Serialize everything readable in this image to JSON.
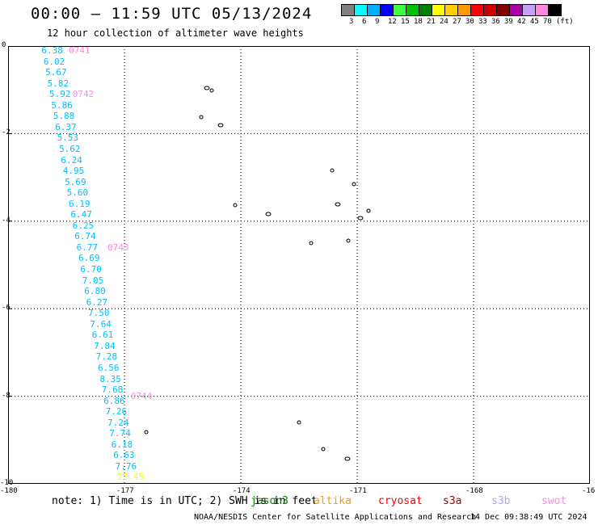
{
  "header": {
    "title": "00:00 – 11:59 UTC 05/13/2024",
    "subtitle": "12 hour collection of altimeter wave heights"
  },
  "legend": {
    "colors": [
      "#808080",
      "#00ffff",
      "#00b0ff",
      "#0000ff",
      "#40ff40",
      "#00c000",
      "#008000",
      "#ffff00",
      "#ffd000",
      "#ff9900",
      "#ff0000",
      "#cc0000",
      "#800000",
      "#aa00aa",
      "#c8a0ff",
      "#ff88dd",
      "#000000"
    ],
    "labels": [
      "3",
      "6",
      "9",
      "12",
      "15",
      "18",
      "21",
      "24",
      "27",
      "30",
      "33",
      "36",
      "39",
      "42",
      "45",
      "70",
      "(ft)"
    ]
  },
  "map": {
    "x_ticks": [
      "-180",
      "-177",
      "-174",
      "-171",
      "-168",
      "-16"
    ],
    "y_ticks": [
      "0",
      "-2",
      "-4",
      "-6",
      "-8",
      "-10"
    ],
    "grid": "dotted"
  },
  "passes": [
    {
      "label": "0741",
      "lat": 0.0,
      "lon": -178.5
    },
    {
      "label": "0742",
      "lat": -1.0,
      "lon": -178.4
    },
    {
      "label": "0743",
      "lat": -4.5,
      "lon": -177.5
    },
    {
      "label": "0744",
      "lat": -7.9,
      "lon": -176.9
    }
  ],
  "swh_color": "#00c0ff",
  "swh_points": [
    {
      "lon": -179.2,
      "lat": 0.0,
      "value": "6.38",
      "color": "#00c0ff"
    },
    {
      "lon": -179.15,
      "lat": -0.25,
      "value": "6.02",
      "color": "#00c0ff"
    },
    {
      "lon": -179.1,
      "lat": -0.5,
      "value": "5.67",
      "color": "#00c0ff"
    },
    {
      "lon": -179.05,
      "lat": -0.75,
      "value": "5.82",
      "color": "#00c0ff"
    },
    {
      "lon": -179.0,
      "lat": -1.0,
      "value": "5.92",
      "color": "#00c0ff"
    },
    {
      "lon": -178.95,
      "lat": -1.25,
      "value": "5.86",
      "color": "#00c0ff"
    },
    {
      "lon": -178.9,
      "lat": -1.5,
      "value": "5.88",
      "color": "#00c0ff"
    },
    {
      "lon": -178.85,
      "lat": -1.75,
      "value": "6.37",
      "color": "#00c0ff"
    },
    {
      "lon": -178.8,
      "lat": -2.0,
      "value": "5.53",
      "color": "#00c0ff"
    },
    {
      "lon": -178.75,
      "lat": -2.25,
      "value": "5.62",
      "color": "#00c0ff"
    },
    {
      "lon": -178.7,
      "lat": -2.5,
      "value": "6.24",
      "color": "#00c0ff"
    },
    {
      "lon": -178.65,
      "lat": -2.75,
      "value": "4.95",
      "color": "#00c0ff"
    },
    {
      "lon": -178.6,
      "lat": -3.0,
      "value": "5.69",
      "color": "#00c0ff"
    },
    {
      "lon": -178.55,
      "lat": -3.25,
      "value": "5.60",
      "color": "#00c0ff"
    },
    {
      "lon": -178.5,
      "lat": -3.5,
      "value": "6.19",
      "color": "#00c0ff"
    },
    {
      "lon": -178.45,
      "lat": -3.75,
      "value": "6.47",
      "color": "#00c0ff"
    },
    {
      "lon": -178.4,
      "lat": -4.0,
      "value": "6.25",
      "color": "#00c0ff"
    },
    {
      "lon": -178.35,
      "lat": -4.25,
      "value": "6.74",
      "color": "#00c0ff"
    },
    {
      "lon": -178.3,
      "lat": -4.5,
      "value": "6.77",
      "color": "#00c0ff"
    },
    {
      "lon": -178.25,
      "lat": -4.75,
      "value": "6.69",
      "color": "#00c0ff"
    },
    {
      "lon": -178.2,
      "lat": -5.0,
      "value": "6.70",
      "color": "#00c0ff"
    },
    {
      "lon": -178.15,
      "lat": -5.25,
      "value": "7.05",
      "color": "#00c0ff"
    },
    {
      "lon": -178.1,
      "lat": -5.5,
      "value": "6.80",
      "color": "#00c0ff"
    },
    {
      "lon": -178.05,
      "lat": -5.75,
      "value": "6.27",
      "color": "#00c0ff"
    },
    {
      "lon": -178.0,
      "lat": -6.0,
      "value": "7.50",
      "color": "#00c0ff"
    },
    {
      "lon": -177.95,
      "lat": -6.25,
      "value": "7.64",
      "color": "#00c0ff"
    },
    {
      "lon": -177.9,
      "lat": -6.5,
      "value": "6.61",
      "color": "#00c0ff"
    },
    {
      "lon": -177.85,
      "lat": -6.75,
      "value": "7.84",
      "color": "#00c0ff"
    },
    {
      "lon": -177.8,
      "lat": -7.0,
      "value": "7.28",
      "color": "#00c0ff"
    },
    {
      "lon": -177.75,
      "lat": -7.25,
      "value": "6.56",
      "color": "#00c0ff"
    },
    {
      "lon": -177.7,
      "lat": -7.5,
      "value": "8.35",
      "color": "#00c0ff"
    },
    {
      "lon": -177.65,
      "lat": -7.75,
      "value": "7.68",
      "color": "#00c0ff"
    },
    {
      "lon": -177.6,
      "lat": -8.0,
      "value": "6.86",
      "color": "#00c0ff"
    },
    {
      "lon": -177.55,
      "lat": -8.25,
      "value": "7.26",
      "color": "#00c0ff"
    },
    {
      "lon": -177.5,
      "lat": -8.5,
      "value": "7.24",
      "color": "#00c0ff"
    },
    {
      "lon": -177.45,
      "lat": -8.75,
      "value": "7.74",
      "color": "#00c0ff"
    },
    {
      "lon": -177.4,
      "lat": -9.0,
      "value": "6.18",
      "color": "#00c0ff"
    },
    {
      "lon": -177.35,
      "lat": -9.25,
      "value": "6.63",
      "color": "#00c0ff"
    },
    {
      "lon": -177.3,
      "lat": -9.5,
      "value": "7.76",
      "color": "#00c0ff"
    },
    {
      "lon": -177.25,
      "lat": -9.75,
      "value": "22.45",
      "color": "#ffff00"
    }
  ],
  "note": {
    "prefix": "note: 1) Time is in UTC; 2) SWH is in feet",
    "satellites": [
      {
        "name": "jason3",
        "color": "#008000"
      },
      {
        "name": "altika",
        "color": "#ff9900"
      },
      {
        "name": "cryosat",
        "color": "#ff0000"
      },
      {
        "name": "s3a",
        "color": "#aa0000"
      },
      {
        "name": "s3b",
        "color": "#b0a0ff"
      },
      {
        "name": "swot",
        "color": "#ff88dd"
      }
    ]
  },
  "footer": {
    "credit": "NOAA/NESDIS Center for Satellite Applications and Research",
    "timestamp": "14 Dec 09:38:49 UTC 2024"
  }
}
